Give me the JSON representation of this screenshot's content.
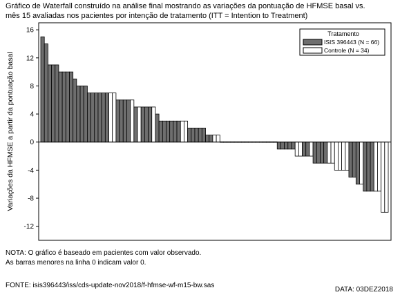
{
  "title_lines": [
    "Gráfico de Waterfall construído na análise final mostrando as variações da pontuação de HFMSE basal vs.",
    "mês 15 avaliadas nos pacientes por intenção de tratamento (ITT = Intention to Treatment)"
  ],
  "notes": [
    "NOTA: O gráfico é baseado em pacientes com valor observado.",
    "As barras  menores na  linha  0 indicam valor 0."
  ],
  "source": "FONTE: isis396443/iss/cds-update-nov2018/f-hfmse-wf-m15-bw.sas",
  "date": "DATA: 03DEZ2018",
  "colors": {
    "treatment": "#6e6e6e",
    "control": "#ffffff",
    "stroke": "#000000"
  },
  "chart_data": {
    "type": "bar",
    "ylabel": "Variações da HFMSE a partir da pontuação basal",
    "ylim": [
      -14,
      17
    ],
    "yticks": [
      16,
      12,
      8,
      4,
      0,
      -4,
      -8,
      -12
    ],
    "legend": {
      "title": "Tratamento",
      "position": "top-right",
      "entries": [
        {
          "key": "T",
          "label": "ISIS 396443 (N = 66)"
        },
        {
          "key": "C",
          "label": "Controle (N = 34)"
        }
      ]
    },
    "bars": [
      {
        "v": 15,
        "g": "T"
      },
      {
        "v": 14,
        "g": "T"
      },
      {
        "v": 11,
        "g": "T"
      },
      {
        "v": 11,
        "g": "T"
      },
      {
        "v": 11,
        "g": "T"
      },
      {
        "v": 10,
        "g": "T"
      },
      {
        "v": 10,
        "g": "T"
      },
      {
        "v": 10,
        "g": "T"
      },
      {
        "v": 10,
        "g": "T"
      },
      {
        "v": 9,
        "g": "T"
      },
      {
        "v": 8,
        "g": "T"
      },
      {
        "v": 8,
        "g": "T"
      },
      {
        "v": 8,
        "g": "T"
      },
      {
        "v": 7,
        "g": "T"
      },
      {
        "v": 7,
        "g": "T"
      },
      {
        "v": 7,
        "g": "T"
      },
      {
        "v": 7,
        "g": "T"
      },
      {
        "v": 7,
        "g": "T"
      },
      {
        "v": 7,
        "g": "T"
      },
      {
        "v": 7,
        "g": "C"
      },
      {
        "v": 7,
        "g": "C"
      },
      {
        "v": 6,
        "g": "T"
      },
      {
        "v": 6,
        "g": "T"
      },
      {
        "v": 6,
        "g": "T"
      },
      {
        "v": 6,
        "g": "T"
      },
      {
        "v": 6,
        "g": "C"
      },
      {
        "v": 5,
        "g": "T"
      },
      {
        "v": 5,
        "g": "C"
      },
      {
        "v": 5,
        "g": "T"
      },
      {
        "v": 5,
        "g": "T"
      },
      {
        "v": 5,
        "g": "T"
      },
      {
        "v": 5,
        "g": "C"
      },
      {
        "v": 4,
        "g": "T"
      },
      {
        "v": 3,
        "g": "T"
      },
      {
        "v": 3,
        "g": "T"
      },
      {
        "v": 3,
        "g": "T"
      },
      {
        "v": 3,
        "g": "T"
      },
      {
        "v": 3,
        "g": "T"
      },
      {
        "v": 3,
        "g": "T"
      },
      {
        "v": 3,
        "g": "C"
      },
      {
        "v": 3,
        "g": "C"
      },
      {
        "v": 2,
        "g": "T"
      },
      {
        "v": 2,
        "g": "T"
      },
      {
        "v": 2,
        "g": "T"
      },
      {
        "v": 2,
        "g": "T"
      },
      {
        "v": 2,
        "g": "T"
      },
      {
        "v": 1,
        "g": "T"
      },
      {
        "v": 1,
        "g": "T"
      },
      {
        "v": 1,
        "g": "C"
      },
      {
        "v": 1,
        "g": "C"
      },
      {
        "v": 0,
        "g": "T"
      },
      {
        "v": 0,
        "g": "T"
      },
      {
        "v": 0,
        "g": "T"
      },
      {
        "v": 0,
        "g": "T"
      },
      {
        "v": 0,
        "g": "T"
      },
      {
        "v": 0,
        "g": "T"
      },
      {
        "v": 0,
        "g": "T"
      },
      {
        "v": 0,
        "g": "T"
      },
      {
        "v": 0,
        "g": "C"
      },
      {
        "v": 0,
        "g": "C"
      },
      {
        "v": 0,
        "g": "C"
      },
      {
        "v": 0,
        "g": "C"
      },
      {
        "v": 0,
        "g": "T"
      },
      {
        "v": 0,
        "g": "T"
      },
      {
        "v": 0,
        "g": "C"
      },
      {
        "v": 0,
        "g": "C"
      },
      {
        "v": -1,
        "g": "T"
      },
      {
        "v": -1,
        "g": "T"
      },
      {
        "v": -1,
        "g": "T"
      },
      {
        "v": -1,
        "g": "T"
      },
      {
        "v": -1,
        "g": "T"
      },
      {
        "v": -2,
        "g": "C"
      },
      {
        "v": -2,
        "g": "C"
      },
      {
        "v": -2,
        "g": "T"
      },
      {
        "v": -2,
        "g": "T"
      },
      {
        "v": -2,
        "g": "C"
      },
      {
        "v": -3,
        "g": "T"
      },
      {
        "v": -3,
        "g": "T"
      },
      {
        "v": -3,
        "g": "T"
      },
      {
        "v": -3,
        "g": "T"
      },
      {
        "v": -3,
        "g": "C"
      },
      {
        "v": -3,
        "g": "C"
      },
      {
        "v": -4,
        "g": "C"
      },
      {
        "v": -4,
        "g": "C"
      },
      {
        "v": -4,
        "g": "C"
      },
      {
        "v": -4,
        "g": "C"
      },
      {
        "v": -5,
        "g": "T"
      },
      {
        "v": -5,
        "g": "T"
      },
      {
        "v": -6,
        "g": "T"
      },
      {
        "v": -6,
        "g": "C"
      },
      {
        "v": -7,
        "g": "T"
      },
      {
        "v": -7,
        "g": "T"
      },
      {
        "v": -7,
        "g": "T"
      },
      {
        "v": -7,
        "g": "C"
      },
      {
        "v": -7,
        "g": "C"
      },
      {
        "v": -10,
        "g": "C"
      },
      {
        "v": -10,
        "g": "C"
      }
    ]
  }
}
